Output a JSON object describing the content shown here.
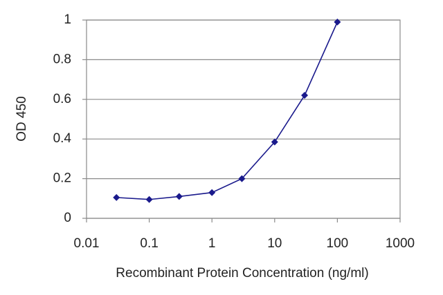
{
  "chart_data": {
    "type": "line",
    "x_label": "Recombinant Protein Concentration (ng/ml)",
    "y_label": "OD 450",
    "x": [
      0.03,
      0.1,
      0.3,
      1,
      3,
      10,
      30,
      100
    ],
    "series": [
      {
        "color": "#1a1a8c",
        "values": [
          0.105,
          0.095,
          0.11,
          0.13,
          0.2,
          0.385,
          0.62,
          0.99
        ]
      }
    ],
    "xscale": "log",
    "xlim": [
      0.01,
      1000
    ],
    "xticks": [
      0.01,
      0.1,
      1,
      10,
      100,
      1000
    ],
    "ylim": [
      0,
      1
    ],
    "yticks": [
      0,
      0.2,
      0.4,
      0.6,
      0.8,
      1
    ],
    "grid": true
  }
}
